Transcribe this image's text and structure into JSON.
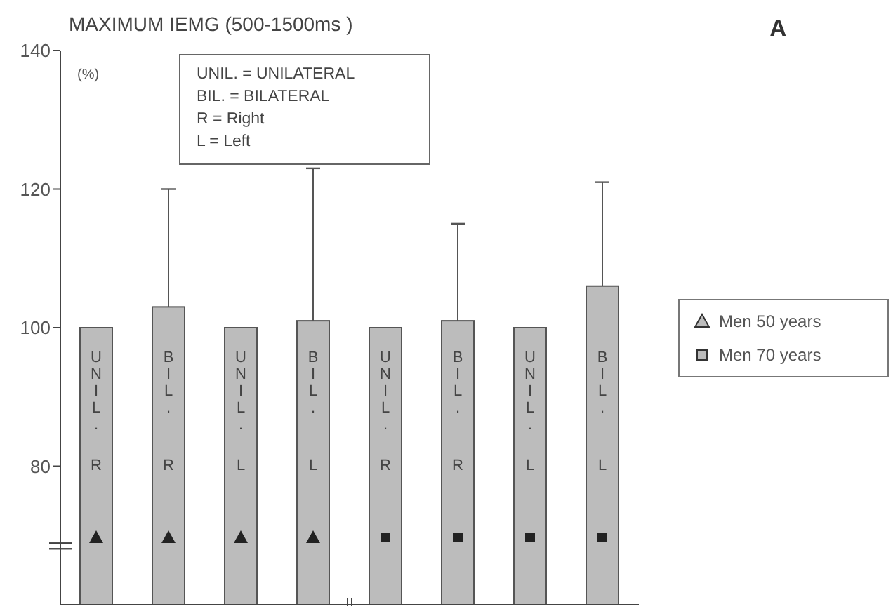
{
  "chart_data": {
    "type": "bar",
    "title": "MAXIMUM  IEMG  (500-1500ms )",
    "ylabel": "(%)",
    "annotations": [
      "UNIL. = UNILATERAL",
      "BIL. = BILATERAL",
      "R = Right",
      "L = Left",
      "A"
    ],
    "categories": [
      "UNIL. R",
      "BIL. R",
      "UNIL. L",
      "BIL. L",
      "UNIL. R",
      "BIL. R",
      "UNIL. L",
      "BIL. L"
    ],
    "series": [
      {
        "name": "Men 50 years",
        "color": "#bcbcbc",
        "marker": "triangle",
        "values": [
          100,
          103,
          100,
          101,
          null,
          null,
          null,
          null
        ],
        "errors": [
          null,
          [
            103,
            120
          ],
          null,
          [
            101,
            123
          ],
          null,
          null,
          null,
          null
        ]
      },
      {
        "name": "Men 70 years",
        "color": "#bcbcbc",
        "marker": "square",
        "values": [
          null,
          null,
          null,
          null,
          100,
          101,
          100,
          106
        ],
        "errors": [
          null,
          null,
          null,
          null,
          null,
          [
            101,
            115
          ],
          null,
          [
            106,
            121
          ]
        ]
      }
    ],
    "ylim": [
      60,
      140
    ],
    "yticks": [
      80,
      100,
      120,
      140
    ],
    "grid": false,
    "legend": "right"
  }
}
